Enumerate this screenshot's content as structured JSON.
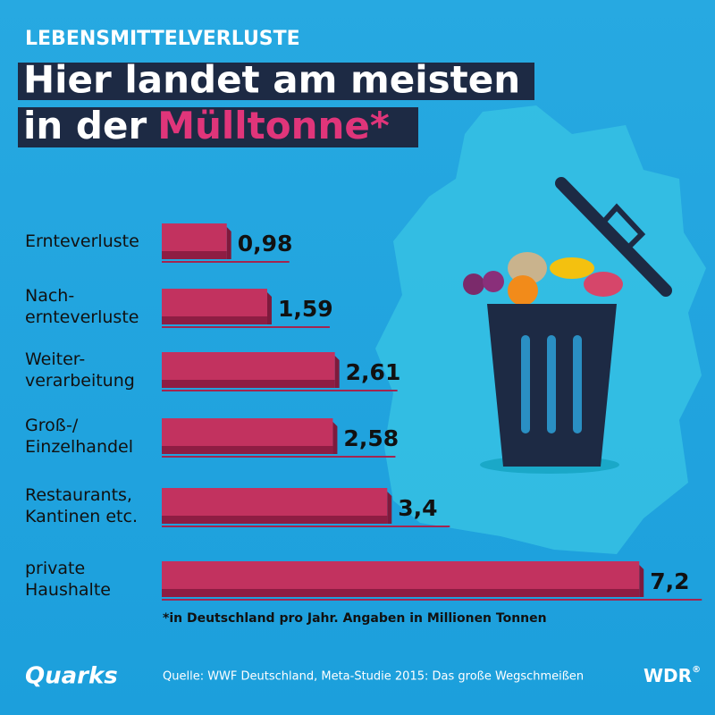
{
  "chart_data": {
    "type": "bar",
    "kicker": "LEBENSMITTELVERLUSTE",
    "title": {
      "line1": "Hier landet am meisten",
      "line2": "in der",
      "highlight": "Mülltonne*"
    },
    "categories": [
      "Ernteverluste",
      "Nach-\nernteverluste",
      "Weiter-\nverarbeitung",
      "Groß-/\nEinzelhandel",
      "Restaurants,\nKantinen etc.",
      "private\nHaushalte"
    ],
    "values": [
      0.98,
      1.59,
      2.61,
      2.58,
      3.4,
      7.2
    ],
    "value_labels": [
      "0,98",
      "1,59",
      "2,61",
      "2,58",
      "3,4",
      "7,2"
    ],
    "color": "#c2325f",
    "footnote": "*in Deutschland pro Jahr. Angaben in Millionen Tonnen",
    "source": "Quelle: WWF Deutschland, Meta-Studie 2015: Das große Wegschmeißen",
    "logo_left": "Quarks",
    "logo_right": "WDR",
    "logo_right_mark": "®"
  }
}
